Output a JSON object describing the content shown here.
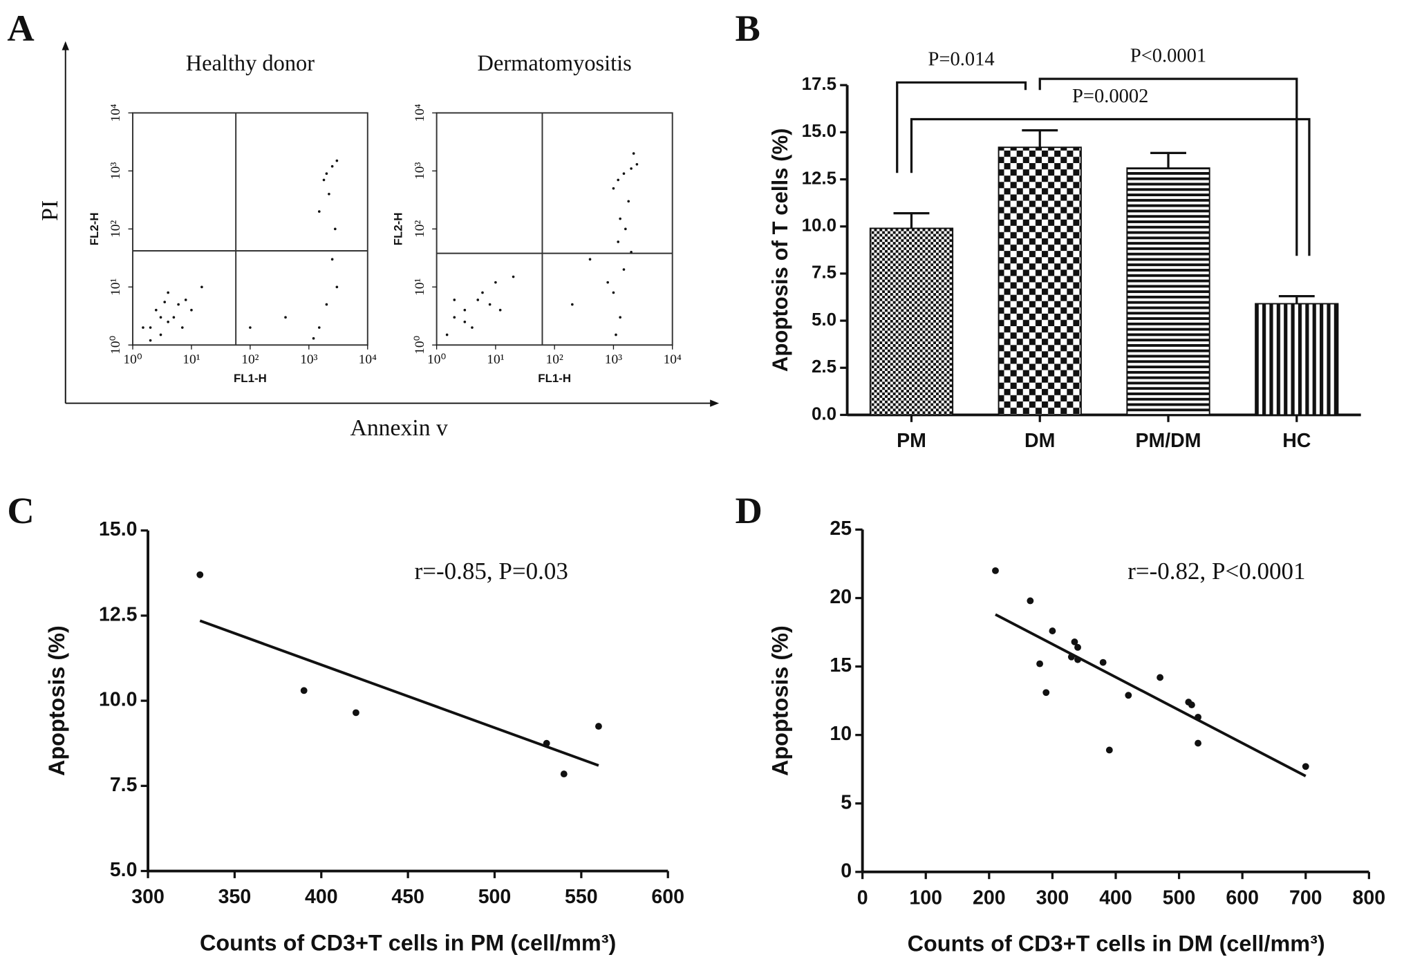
{
  "chart_data": [
    {
      "type": "flow",
      "panel": "A",
      "ylabel": "PI",
      "xlabel": "Annexin v",
      "log": true,
      "xlim": [
        1,
        10000
      ],
      "ylim": [
        1,
        10000
      ],
      "xticks": [
        {
          "value": 1,
          "label": "10⁰"
        },
        {
          "value": 10,
          "label": "10¹"
        },
        {
          "value": 100,
          "label": "10²"
        },
        {
          "value": 1000,
          "label": "10³"
        },
        {
          "value": 10000,
          "label": "10⁴"
        }
      ],
      "yticks": [
        {
          "value": 1,
          "label": "10⁰"
        },
        {
          "value": 10,
          "label": "10¹"
        },
        {
          "value": 100,
          "label": "10²"
        },
        {
          "value": 1000,
          "label": "10³"
        },
        {
          "value": 10000,
          "label": "10⁴"
        }
      ],
      "plots": [
        {
          "title": "Healthy donor",
          "xlabel": "FL1-H",
          "ylabel": "FL2-H",
          "xgate": 57,
          "ygate": 42,
          "x": [
            2,
            3,
            4,
            2.5,
            5,
            3,
            6,
            1.5,
            8,
            4,
            2,
            10,
            3.5,
            7,
            15,
            2000,
            2500,
            1800,
            3000,
            2200,
            1500,
            2800,
            2000,
            1500,
            3000,
            1200,
            2500,
            400,
            100
          ],
          "y": [
            2,
            3,
            2.5,
            4,
            3,
            1.5,
            5,
            2,
            6,
            8,
            1.2,
            4,
            5.5,
            2,
            10,
            900,
            1200,
            700,
            1500,
            400,
            200,
            100,
            5,
            2,
            10,
            1.3,
            30,
            3,
            2
          ]
        },
        {
          "title": "Dermatomyositis",
          "xlabel": "FL1-H",
          "ylabel": "FL2-H",
          "xgate": 62,
          "ygate": 38,
          "x": [
            3,
            5,
            2,
            4,
            6,
            8,
            1.5,
            10,
            3,
            12,
            20,
            2,
            1500,
            1200,
            2000,
            1000,
            2500,
            1800,
            1300,
            2200,
            1200,
            1500,
            1000,
            1300,
            1100,
            2000,
            800,
            400,
            200,
            1600
          ],
          "y": [
            4,
            6,
            3,
            2,
            8,
            5,
            1.5,
            12,
            2.5,
            4,
            15,
            6,
            900,
            700,
            1100,
            500,
            1300,
            300,
            150,
            2000,
            60,
            20,
            8,
            3,
            1.5,
            40,
            12,
            30,
            5,
            100
          ]
        }
      ]
    },
    {
      "type": "bar",
      "panel": "B",
      "ylabel": "Apoptosis of T cells (%)",
      "categories": [
        "PM",
        "DM",
        "PM/DM",
        "HC"
      ],
      "values": [
        9.9,
        14.2,
        13.1,
        5.9
      ],
      "errors": [
        0.8,
        0.9,
        0.8,
        0.4
      ],
      "patterns": [
        "fine-check",
        "check",
        "hstripe",
        "vstripe"
      ],
      "ylim": [
        0,
        17.5
      ],
      "yticks": [
        {
          "value": 0,
          "label": "0.0"
        },
        2.5,
        {
          "value": 5,
          "label": "5.0"
        },
        7.5,
        {
          "value": 10,
          "label": "10.0"
        },
        12.5,
        {
          "value": 15,
          "label": "15.0"
        },
        17.5
      ],
      "comparisons": [
        {
          "pair": [
            0,
            1
          ],
          "label": "P=0.014"
        },
        {
          "pair": [
            1,
            3
          ],
          "label": "P<0.0001"
        },
        {
          "pair": [
            0,
            3
          ],
          "label": "P=0.0002"
        }
      ]
    },
    {
      "type": "scatter",
      "panel": "C",
      "xlabel": "Counts of CD3+T cells in PM (cell/mm³)",
      "ylabel": "Apoptosis (%)",
      "annotation": "r=-0.85,  P=0.03",
      "x": [
        330,
        390,
        420,
        530,
        540,
        560
      ],
      "y": [
        13.7,
        10.3,
        9.65,
        8.75,
        7.85,
        9.25
      ],
      "fit": {
        "x": [
          330,
          560
        ],
        "y": [
          12.35,
          8.1
        ]
      },
      "xlim": [
        300,
        600
      ],
      "xticks": [
        300,
        350,
        400,
        450,
        500,
        550,
        600
      ],
      "ylim": [
        5,
        15
      ],
      "yticks": [
        {
          "value": 5,
          "label": "5.0"
        },
        7.5,
        {
          "value": 10,
          "label": "10.0"
        },
        12.5,
        {
          "value": 15,
          "label": "15.0"
        }
      ]
    },
    {
      "type": "scatter",
      "panel": "D",
      "xlabel": "Counts of CD3+T cells in DM (cell/mm³)",
      "ylabel": "Apoptosis (%)",
      "annotation": "r=-0.82,  P<0.0001",
      "x": [
        210,
        265,
        280,
        290,
        300,
        330,
        335,
        340,
        340,
        380,
        390,
        420,
        470,
        515,
        520,
        530,
        530,
        700
      ],
      "y": [
        22,
        19.8,
        15.2,
        13.1,
        17.6,
        15.7,
        16.8,
        16.4,
        15.5,
        15.3,
        8.9,
        12.9,
        14.2,
        12.4,
        12.2,
        11.3,
        9.4,
        7.7
      ],
      "fit": {
        "x": [
          210,
          700
        ],
        "y": [
          18.8,
          7.0
        ]
      },
      "xlim": [
        0,
        800
      ],
      "xticks": [
        0,
        100,
        200,
        300,
        400,
        500,
        600,
        700,
        800
      ],
      "ylim": [
        0,
        25
      ],
      "yticks": [
        0,
        5,
        10,
        15,
        20,
        25
      ]
    }
  ]
}
